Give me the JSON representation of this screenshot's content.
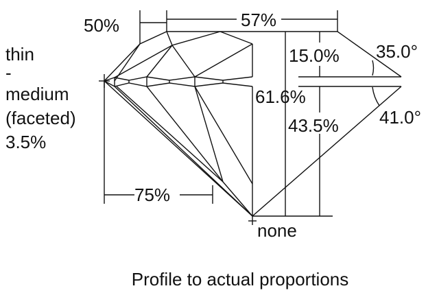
{
  "labels": {
    "crown_height_ratio": "50%",
    "table": "57%",
    "crown_height": "15.0%",
    "crown_angle": "35.0°",
    "total_depth": "61.6%",
    "pavilion_depth": "43.5%",
    "pavilion_angle": "41.0°",
    "lower_half": "75%",
    "culet": "none",
    "girdle": [
      "thin",
      "-",
      "medium",
      "(faceted)",
      "3.5%"
    ]
  },
  "caption": "Profile to actual proportions",
  "colors": {
    "line": "#111111",
    "background": "#ffffff"
  }
}
